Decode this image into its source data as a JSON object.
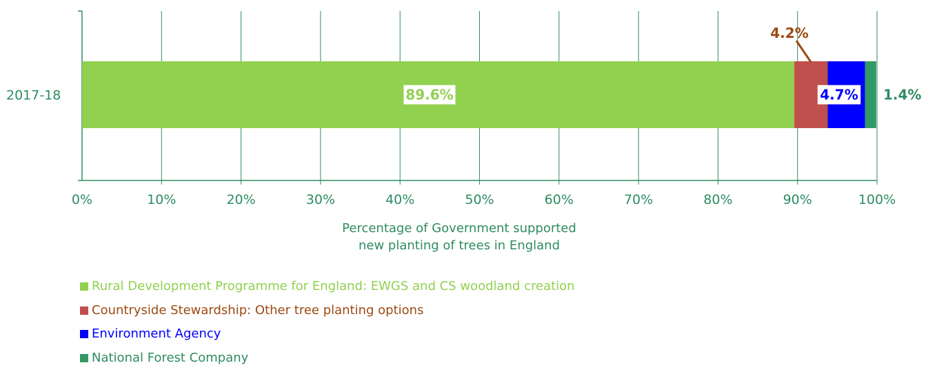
{
  "chart_data": {
    "type": "bar",
    "orientation": "horizontal",
    "stacked": true,
    "categories": [
      "2017-18"
    ],
    "series": [
      {
        "name": "Rural Development Programme for England: EWGS and CS woodland creation",
        "values": [
          89.6
        ],
        "label": "89.6%",
        "color": "#92d050"
      },
      {
        "name": "Countryside Stewardship: Other tree planting options",
        "values": [
          4.2
        ],
        "label": "4.2%",
        "color": "#c0504d"
      },
      {
        "name": "Environment Agency",
        "values": [
          4.7
        ],
        "label": "4.7%",
        "color": "#0000ff"
      },
      {
        "name": "National Forest Company",
        "values": [
          1.4
        ],
        "label": "1.4%",
        "color": "#339966"
      }
    ],
    "xlabel_lines": [
      "Percentage of Government supported",
      "new planting of trees in England"
    ],
    "xlim": [
      0,
      100
    ],
    "xticks": [
      "0%",
      "10%",
      "20%",
      "30%",
      "40%",
      "50%",
      "60%",
      "70%",
      "80%",
      "90%",
      "100%"
    ],
    "grid": true,
    "legend_position": "bottom",
    "colors": {
      "axis": "#2e8b62",
      "grid": "#2e8b62",
      "label_rdpe": "#92d050",
      "label_cs": "#9c4a12",
      "label_ea": "#0000ff",
      "label_nfc": "#2e8b62",
      "legend_rdpe_text": "#92d050",
      "legend_cs_text": "#9c4a12",
      "legend_ea_text": "#0000ff",
      "legend_nfc_text": "#2e8b62"
    }
  }
}
